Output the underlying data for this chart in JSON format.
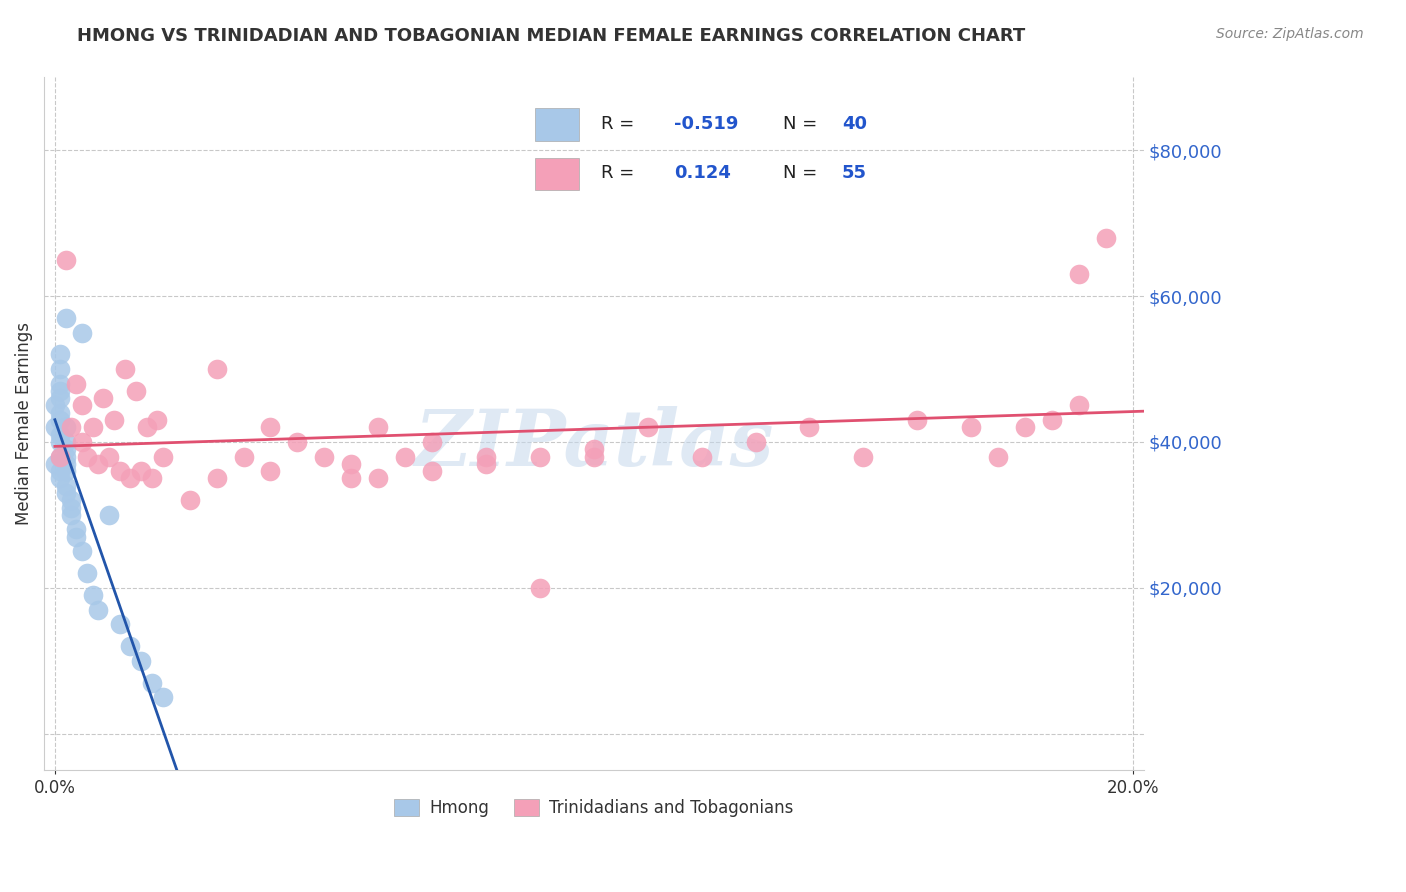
{
  "title": "HMONG VS TRINIDADIAN AND TOBAGONIAN MEDIAN FEMALE EARNINGS CORRELATION CHART",
  "source": "Source: ZipAtlas.com",
  "ylabel": "Median Female Earnings",
  "xlim": [
    -0.002,
    0.202
  ],
  "ylim": [
    -5000,
    90000
  ],
  "yticks": [
    0,
    20000,
    40000,
    60000,
    80000
  ],
  "xticks": [
    0.0,
    0.2
  ],
  "hmong_color": "#a8c8e8",
  "trinidadian_color": "#f4a0b8",
  "hmong_line_color": "#2255aa",
  "trinidadian_line_color": "#e05070",
  "background_color": "#ffffff",
  "grid_color": "#bbbbbb",
  "watermark_text": "ZIPatlas",
  "hmong_x": [
    0.0,
    0.0,
    0.0,
    0.001,
    0.001,
    0.001,
    0.001,
    0.001,
    0.001,
    0.001,
    0.001,
    0.001,
    0.001,
    0.001,
    0.001,
    0.002,
    0.002,
    0.002,
    0.002,
    0.002,
    0.002,
    0.002,
    0.002,
    0.002,
    0.003,
    0.003,
    0.003,
    0.004,
    0.004,
    0.005,
    0.005,
    0.006,
    0.007,
    0.008,
    0.01,
    0.012,
    0.014,
    0.016,
    0.018,
    0.02
  ],
  "hmong_y": [
    37000,
    42000,
    45000,
    38000,
    40000,
    41000,
    43000,
    44000,
    46000,
    47000,
    48000,
    50000,
    35000,
    36000,
    52000,
    33000,
    34000,
    36000,
    37000,
    38000,
    39000,
    40000,
    42000,
    57000,
    30000,
    31000,
    32000,
    27000,
    28000,
    25000,
    55000,
    22000,
    19000,
    17000,
    30000,
    15000,
    12000,
    10000,
    7000,
    5000
  ],
  "trin_x": [
    0.001,
    0.002,
    0.003,
    0.004,
    0.005,
    0.005,
    0.006,
    0.007,
    0.008,
    0.009,
    0.01,
    0.011,
    0.012,
    0.013,
    0.014,
    0.015,
    0.016,
    0.017,
    0.018,
    0.019,
    0.02,
    0.025,
    0.03,
    0.035,
    0.04,
    0.045,
    0.05,
    0.055,
    0.06,
    0.065,
    0.07,
    0.08,
    0.09,
    0.1,
    0.11,
    0.12,
    0.13,
    0.14,
    0.15,
    0.16,
    0.17,
    0.175,
    0.18,
    0.185,
    0.19,
    0.195,
    0.06,
    0.07,
    0.08,
    0.09,
    0.1,
    0.055,
    0.04,
    0.03,
    0.19
  ],
  "trin_y": [
    38000,
    65000,
    42000,
    48000,
    40000,
    45000,
    38000,
    42000,
    37000,
    46000,
    38000,
    43000,
    36000,
    50000,
    35000,
    47000,
    36000,
    42000,
    35000,
    43000,
    38000,
    32000,
    35000,
    38000,
    42000,
    40000,
    38000,
    35000,
    42000,
    38000,
    40000,
    38000,
    20000,
    38000,
    42000,
    38000,
    40000,
    42000,
    38000,
    43000,
    42000,
    38000,
    42000,
    43000,
    45000,
    68000,
    35000,
    36000,
    37000,
    38000,
    39000,
    37000,
    36000,
    50000,
    63000
  ]
}
